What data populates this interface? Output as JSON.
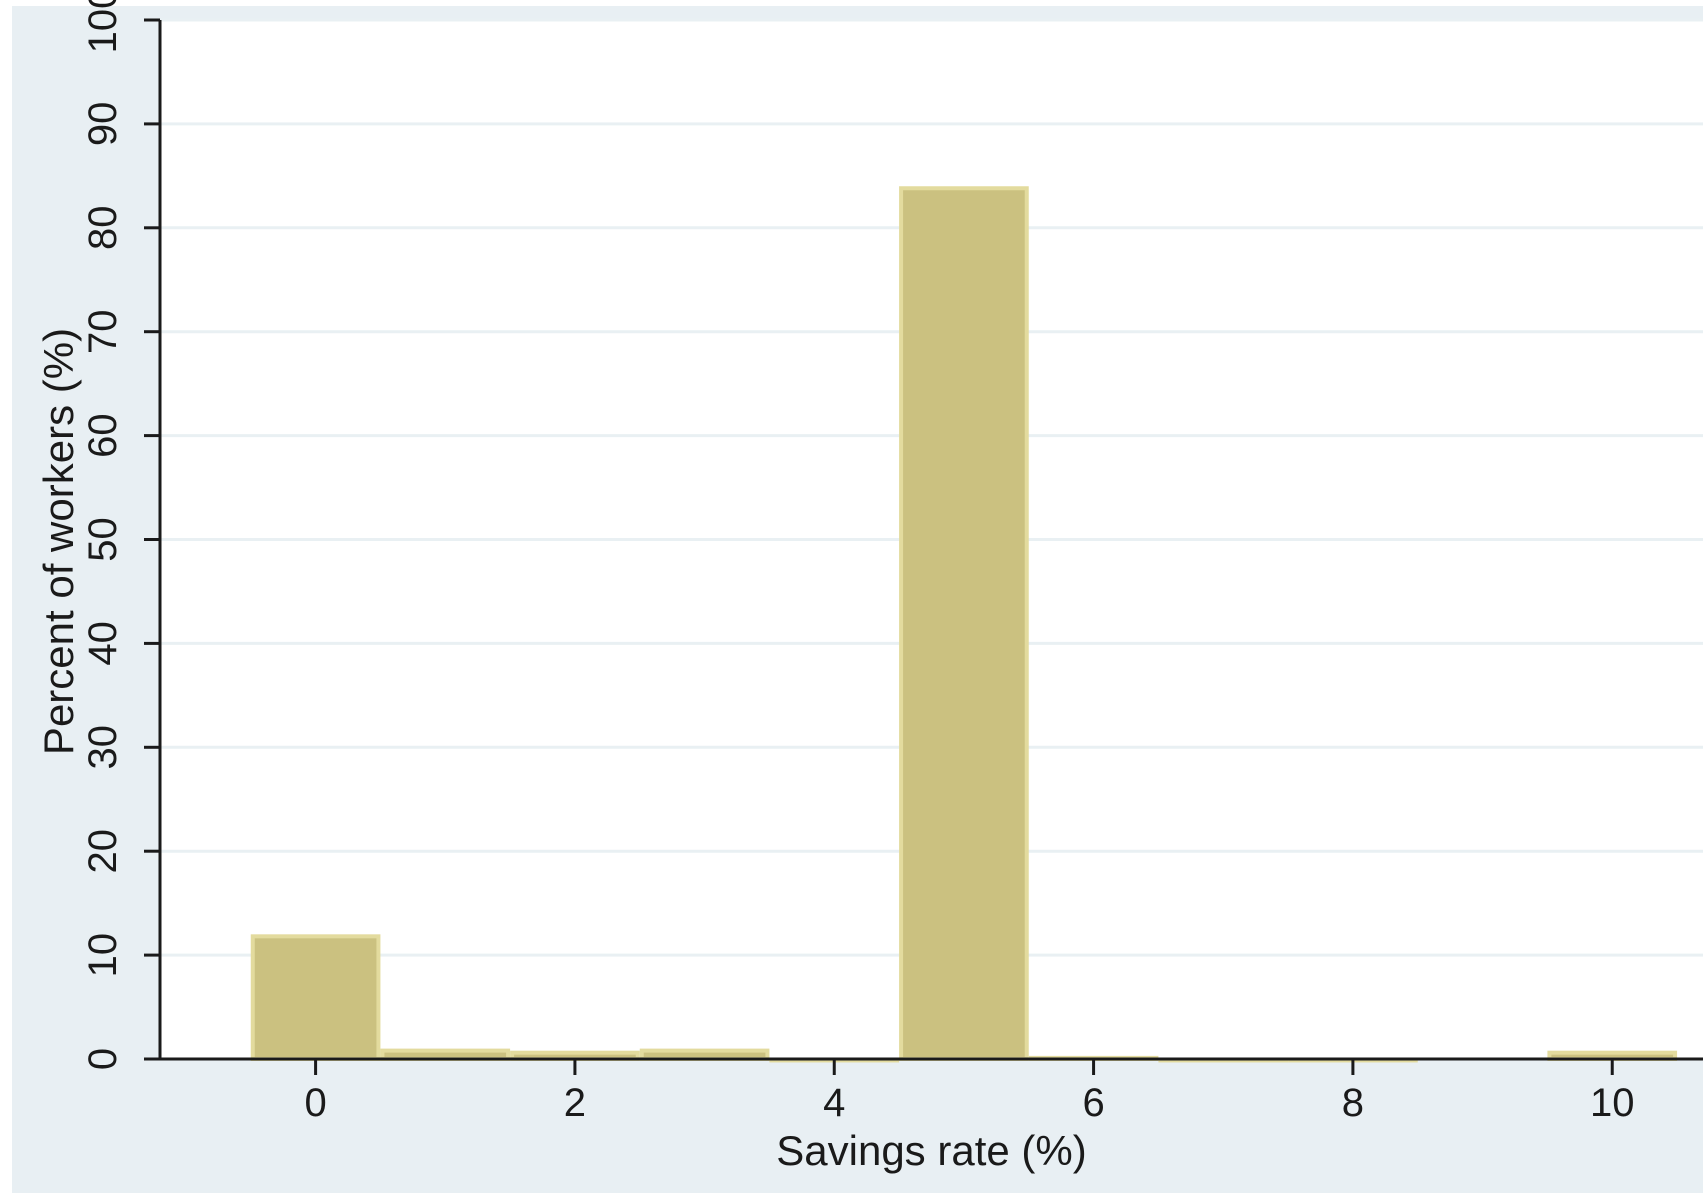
{
  "chart_data": {
    "type": "bar",
    "title": "",
    "xlabel": "Savings rate (%)",
    "ylabel": "Percent of workers (%)",
    "x": [
      0,
      1,
      2,
      3,
      4,
      5,
      6,
      7,
      8,
      9,
      10
    ],
    "values": [
      12,
      1,
      0.8,
      1,
      0.1,
      84,
      0.3,
      0.1,
      0.1,
      0,
      0.8
    ],
    "bar_width": 1,
    "xlim": [
      -1.2,
      10.7
    ],
    "ylim": [
      0,
      100
    ],
    "xticks": [
      0,
      2,
      4,
      6,
      8,
      10
    ],
    "yticks": [
      0,
      10,
      20,
      30,
      40,
      50,
      60,
      70,
      80,
      90,
      100
    ],
    "xtick_labels": [
      "0",
      "2",
      "4",
      "6",
      "8",
      "10"
    ],
    "ytick_labels": [
      "0",
      "10",
      "20",
      "30",
      "40",
      "50",
      "60",
      "70",
      "80",
      "90",
      "100"
    ],
    "grid": "horizontal",
    "legend": "none",
    "colors": {
      "outer_background": "#e8eff3",
      "plot_background": "#ffffff",
      "gridline": "#e9f0f3",
      "bar_fill": "#cbc180",
      "bar_outline": "#e3db9e",
      "axis": "#1a1a1a"
    }
  }
}
